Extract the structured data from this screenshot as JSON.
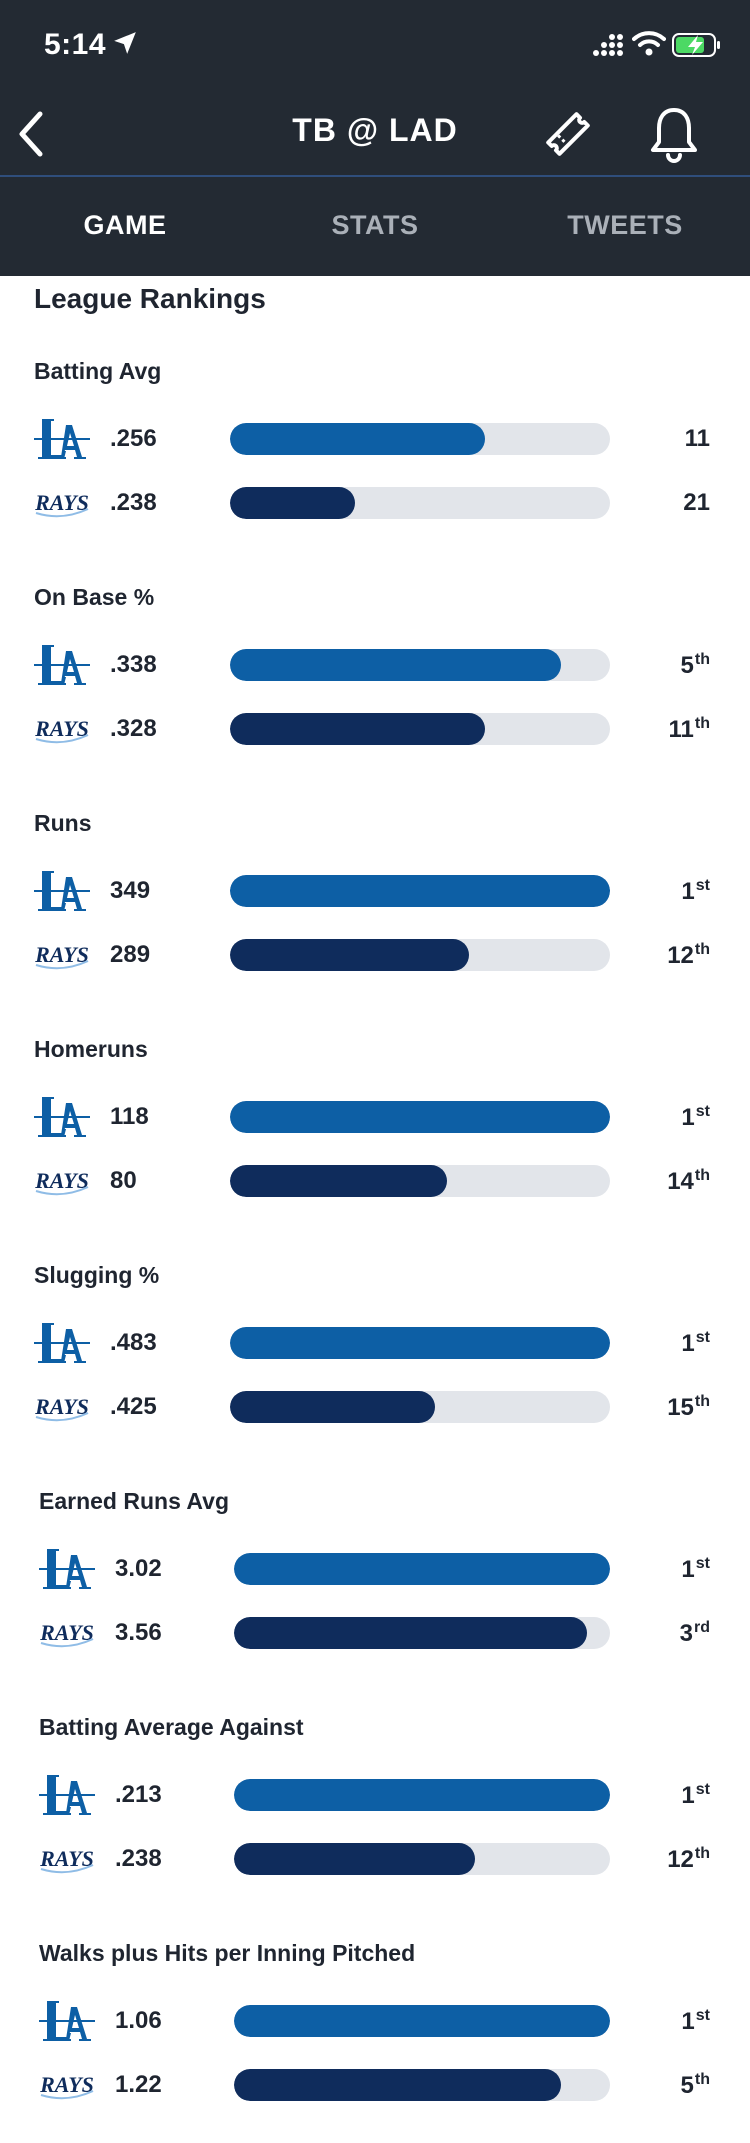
{
  "status_bar": {
    "time": "5:14"
  },
  "nav": {
    "title": "TB @ LAD"
  },
  "tabs": [
    {
      "label": "GAME",
      "active": true
    },
    {
      "label": "STATS",
      "active": false
    },
    {
      "label": "TWEETS",
      "active": false
    }
  ],
  "section_title": "League Rankings",
  "colors": {
    "la_bar": "#0d5fa5",
    "tb_bar": "#0f2c5c",
    "track": "#e2e5ea",
    "header_bg": "#232a33"
  },
  "metrics": [
    {
      "title": "Batting Avg",
      "rows": [
        {
          "team": "LA",
          "value": ".256",
          "fill": 0.67,
          "rank": "11",
          "suffix": ""
        },
        {
          "team": "RAYS",
          "value": ".238",
          "fill": 0.33,
          "rank": "21",
          "suffix": ""
        }
      ]
    },
    {
      "title": "On Base %",
      "rows": [
        {
          "team": "LA",
          "value": ".338",
          "fill": 0.87,
          "rank": "5",
          "suffix": "th"
        },
        {
          "team": "RAYS",
          "value": ".328",
          "fill": 0.67,
          "rank": "11",
          "suffix": "th"
        }
      ]
    },
    {
      "title": "Runs",
      "rows": [
        {
          "team": "LA",
          "value": "349",
          "fill": 1.0,
          "rank": "1",
          "suffix": "st"
        },
        {
          "team": "RAYS",
          "value": "289",
          "fill": 0.63,
          "rank": "12",
          "suffix": "th"
        }
      ]
    },
    {
      "title": "Homeruns",
      "rows": [
        {
          "team": "LA",
          "value": "118",
          "fill": 1.0,
          "rank": "1",
          "suffix": "st"
        },
        {
          "team": "RAYS",
          "value": "80",
          "fill": 0.57,
          "rank": "14",
          "suffix": "th"
        }
      ]
    },
    {
      "title": "Slugging %",
      "rows": [
        {
          "team": "LA",
          "value": ".483",
          "fill": 1.0,
          "rank": "1",
          "suffix": "st"
        },
        {
          "team": "RAYS",
          "value": ".425",
          "fill": 0.54,
          "rank": "15",
          "suffix": "th"
        }
      ]
    },
    {
      "title": "Earned Runs Avg",
      "rows": [
        {
          "team": "LA",
          "value": "3.02",
          "fill": 1.0,
          "rank": "1",
          "suffix": "st"
        },
        {
          "team": "RAYS",
          "value": "3.56",
          "fill": 0.94,
          "rank": "3",
          "suffix": "rd"
        }
      ]
    },
    {
      "title": "Batting Average Against",
      "rows": [
        {
          "team": "LA",
          "value": ".213",
          "fill": 1.0,
          "rank": "1",
          "suffix": "st"
        },
        {
          "team": "RAYS",
          "value": ".238",
          "fill": 0.64,
          "rank": "12",
          "suffix": "th"
        }
      ]
    },
    {
      "title": "Walks plus Hits per Inning Pitched",
      "rows": [
        {
          "team": "LA",
          "value": "1.06",
          "fill": 1.0,
          "rank": "1",
          "suffix": "st"
        },
        {
          "team": "RAYS",
          "value": "1.22",
          "fill": 0.87,
          "rank": "5",
          "suffix": "th"
        }
      ]
    }
  ]
}
